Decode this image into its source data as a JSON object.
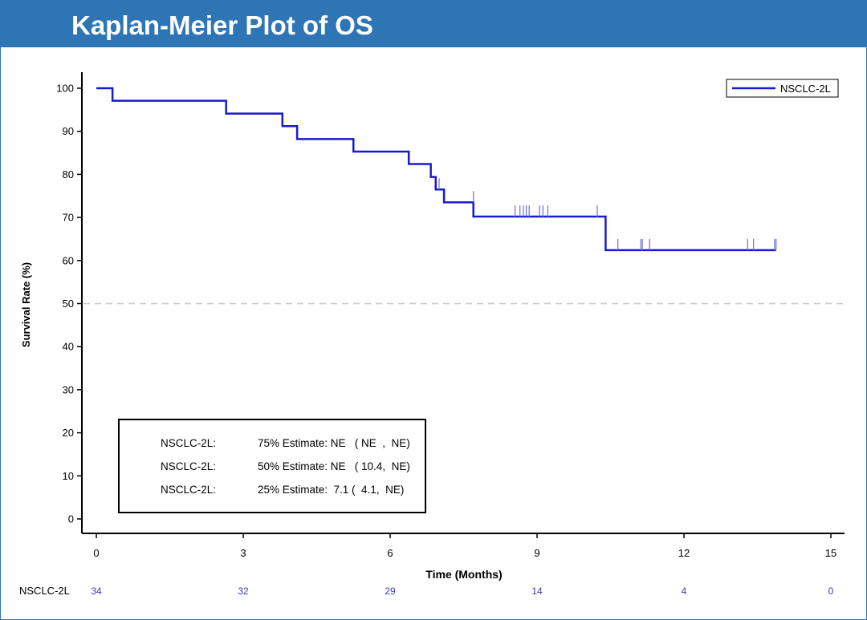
{
  "header": {
    "title": "Kaplan-Meier Plot of OS"
  },
  "chart_data": {
    "type": "line",
    "step": true,
    "title": "",
    "xlabel": "Time (Months)",
    "ylabel": "Survival Rate (%)",
    "xlim": [
      0,
      15
    ],
    "ylim": [
      0,
      100
    ],
    "xticks": [
      0,
      3,
      6,
      9,
      12,
      15
    ],
    "yticks": [
      0,
      10,
      20,
      30,
      40,
      50,
      60,
      70,
      80,
      90,
      100
    ],
    "grid": false,
    "reference_line": {
      "y": 50,
      "style": "dashed"
    },
    "legend": {
      "position": "top-right",
      "entries": [
        "NSCLC-2L"
      ]
    },
    "series": [
      {
        "name": "NSCLC-2L",
        "color": "#1a1acc",
        "steps": [
          [
            0,
            100
          ],
          [
            0.33,
            97.1
          ],
          [
            2.65,
            94.1
          ],
          [
            3.8,
            91.2
          ],
          [
            4.1,
            88.2
          ],
          [
            5.25,
            85.3
          ],
          [
            6.38,
            82.4
          ],
          [
            6.83,
            79.4
          ],
          [
            6.93,
            76.5
          ],
          [
            7.1,
            73.5
          ],
          [
            7.7,
            70.2
          ],
          [
            10.4,
            62.4
          ],
          [
            13.88,
            62.4
          ]
        ],
        "censored": [
          [
            7.0,
            76.5
          ],
          [
            7.7,
            73.5
          ],
          [
            8.55,
            70.2
          ],
          [
            8.65,
            70.2
          ],
          [
            8.72,
            70.2
          ],
          [
            8.78,
            70.2
          ],
          [
            8.84,
            70.2
          ],
          [
            9.05,
            70.2
          ],
          [
            9.12,
            70.2
          ],
          [
            9.22,
            70.2
          ],
          [
            10.23,
            70.2
          ],
          [
            10.65,
            62.4
          ],
          [
            11.12,
            62.4
          ],
          [
            11.15,
            62.4
          ],
          [
            11.3,
            62.4
          ],
          [
            13.3,
            62.4
          ],
          [
            13.42,
            62.4
          ],
          [
            13.85,
            62.4
          ],
          [
            13.88,
            62.4
          ]
        ]
      }
    ],
    "estimates": [
      {
        "group": "NSCLC-2L:",
        "text": "75% Estimate: NE   ( NE  ,  NE)"
      },
      {
        "group": "NSCLC-2L:",
        "text": "50% Estimate: NE   ( 10.4,  NE)"
      },
      {
        "group": "NSCLC-2L:",
        "text": "25% Estimate:  7.1 (  4.1,  NE)"
      }
    ],
    "risk_table": {
      "label": "NSCLC-2L",
      "times": [
        0,
        3,
        6,
        9,
        12,
        15
      ],
      "counts": [
        "34",
        "32",
        "29",
        "14",
        "4",
        "0"
      ]
    }
  }
}
